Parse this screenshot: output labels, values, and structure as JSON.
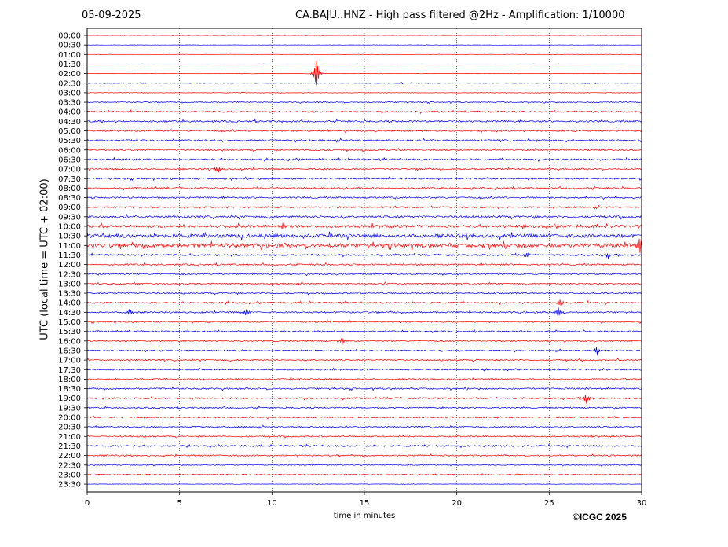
{
  "header": {
    "date": "05-09-2025",
    "title": "CA.BAJU..HNZ - High pass filtered @2Hz - Amplification: 1/10000"
  },
  "footer": {
    "copyright": "©ICGC 2025"
  },
  "colors": {
    "trace_even": "#ff0000",
    "trace_odd": "#0000ff",
    "grid": "#000000",
    "background": "#ffffff"
  },
  "chart_data": {
    "type": "line",
    "title": "CA.BAJU..HNZ - High pass filtered @2Hz - Amplification: 1/10000",
    "xlabel": "time in minutes",
    "ylabel": "UTC (local time = UTC + 02:00)",
    "xlim": [
      0,
      30
    ],
    "x_ticks": [
      0,
      5,
      10,
      15,
      20,
      25,
      30
    ],
    "grid_vertical": true,
    "row_labels": [
      "00:00",
      "00:30",
      "01:00",
      "01:30",
      "02:00",
      "02:30",
      "03:00",
      "03:30",
      "04:00",
      "04:30",
      "05:00",
      "05:30",
      "06:00",
      "06:30",
      "07:00",
      "07:30",
      "08:00",
      "08:30",
      "09:00",
      "09:30",
      "10:00",
      "10:30",
      "11:00",
      "11:30",
      "12:00",
      "12:30",
      "13:00",
      "13:30",
      "14:00",
      "14:30",
      "15:00",
      "15:30",
      "16:00",
      "16:30",
      "17:00",
      "17:30",
      "18:00",
      "18:30",
      "19:00",
      "19:30",
      "20:00",
      "20:30",
      "21:00",
      "21:30",
      "22:00",
      "22:30",
      "23:00",
      "23:30"
    ],
    "trace_colors_cycle": [
      "#ff0000",
      "#0000ff"
    ],
    "noise_levels": [
      0.2,
      0.2,
      0.2,
      0.2,
      0.2,
      0.3,
      0.3,
      0.6,
      0.9,
      1.0,
      0.9,
      1.0,
      0.9,
      1.0,
      0.9,
      0.9,
      0.9,
      0.9,
      0.9,
      1.3,
      1.6,
      2.2,
      2.4,
      1.0,
      0.9,
      0.8,
      0.8,
      0.8,
      0.9,
      0.9,
      0.8,
      0.8,
      0.8,
      0.8,
      0.8,
      0.8,
      0.8,
      0.9,
      0.9,
      0.8,
      0.8,
      0.8,
      0.8,
      0.9,
      0.8,
      0.6,
      0.5,
      0.3
    ],
    "events": [
      {
        "row": "02:00",
        "time_min": 12.4,
        "amplitude_rows": 1.6
      },
      {
        "row": "02:30",
        "time_min": 17.0,
        "amplitude_rows": 0.1
      },
      {
        "row": "07:00",
        "time_min": 7.1,
        "amplitude_rows": 0.4
      },
      {
        "row": "10:00",
        "time_min": 10.6,
        "amplitude_rows": 0.4
      },
      {
        "row": "11:00",
        "time_min": 29.9,
        "amplitude_rows": 0.7
      },
      {
        "row": "11:30",
        "time_min": 23.8,
        "amplitude_rows": 0.3
      },
      {
        "row": "11:30",
        "time_min": 28.2,
        "amplitude_rows": 0.35
      },
      {
        "row": "14:00",
        "time_min": 25.6,
        "amplitude_rows": 0.4
      },
      {
        "row": "14:30",
        "time_min": 2.3,
        "amplitude_rows": 0.4
      },
      {
        "row": "14:30",
        "time_min": 8.6,
        "amplitude_rows": 0.4
      },
      {
        "row": "14:30",
        "time_min": 25.5,
        "amplitude_rows": 0.5
      },
      {
        "row": "16:00",
        "time_min": 13.8,
        "amplitude_rows": 0.4
      },
      {
        "row": "16:30",
        "time_min": 27.6,
        "amplitude_rows": 0.45
      },
      {
        "row": "19:00",
        "time_min": 27.0,
        "amplitude_rows": 0.6
      }
    ]
  }
}
